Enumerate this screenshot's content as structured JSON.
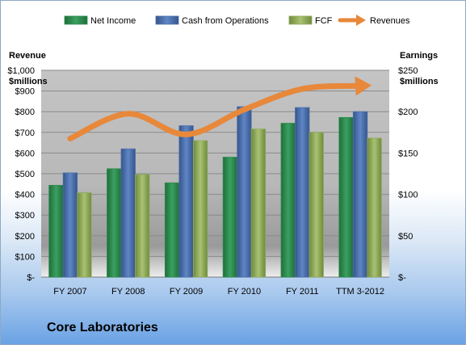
{
  "chart_data": {
    "type": "bar",
    "title": "",
    "categories": [
      "FY 2007",
      "FY 2008",
      "FY 2009",
      "FY 2010",
      "FY 2011",
      "TTM 3-2012"
    ],
    "left_axis": {
      "label_line1": "Revenue",
      "label_line2": "$millions",
      "ylim": [
        0,
        1000
      ],
      "ticks": [
        "$-",
        "$100",
        "$200",
        "$300",
        "$400",
        "$500",
        "$600",
        "$700",
        "$800",
        "$900",
        "$1,000"
      ]
    },
    "right_axis": {
      "label_line1": "Earnings",
      "label_line2": "$millions",
      "ylim": [
        0,
        250
      ],
      "ticks": [
        "$-",
        "$50",
        "$100",
        "$150",
        "$200",
        "$250"
      ]
    },
    "series": [
      {
        "name": "Net Income",
        "axis": "right",
        "color": "#2e8b4e",
        "values": [
          111,
          131,
          114,
          145,
          186,
          193
        ]
      },
      {
        "name": "Cash from Operations",
        "axis": "right",
        "color": "#4a6fab",
        "values": [
          126,
          155,
          183,
          206,
          205,
          200
        ]
      },
      {
        "name": "FCF",
        "axis": "right",
        "color": "#8faa5a",
        "values": [
          102,
          124,
          165,
          179,
          175,
          168
        ]
      },
      {
        "name": "Revenues",
        "axis": "left",
        "type": "line",
        "color": "#e8883a",
        "values": [
          670,
          790,
          690,
          810,
          910,
          925
        ]
      }
    ],
    "grid": true,
    "legend": "top",
    "footer": "Core Laboratories"
  }
}
